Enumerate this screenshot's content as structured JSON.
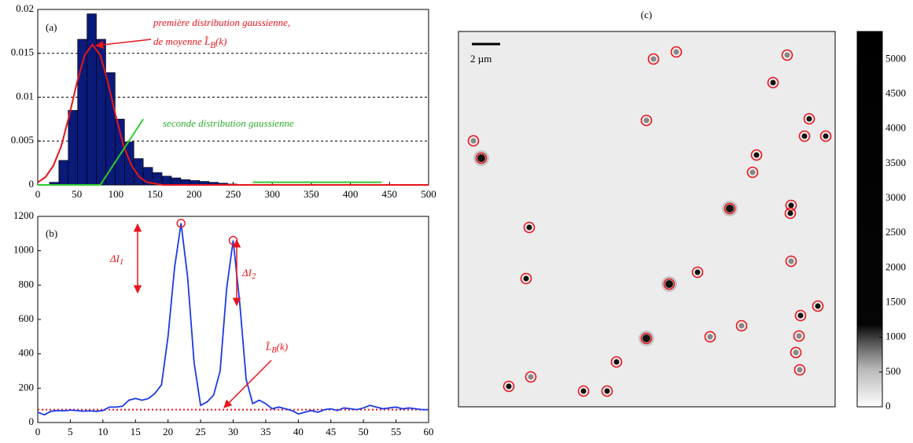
{
  "chart_data": [
    {
      "type": "histogram",
      "label": "(a)",
      "bins": [
        15,
        27,
        39,
        51,
        63,
        75,
        87,
        99,
        111,
        123,
        135,
        147,
        159,
        171,
        183,
        195,
        207,
        219,
        231,
        243,
        255
      ],
      "values": [
        0.0003,
        0.0028,
        0.0085,
        0.0166,
        0.0195,
        0.0166,
        0.0128,
        0.0075,
        0.0049,
        0.003,
        0.002,
        0.0014,
        0.001,
        0.0008,
        0.0006,
        0.0005,
        0.0004,
        0.0003,
        0.0002,
        0.0001
      ],
      "color": "#0a1a78",
      "lines": [
        {
          "color": "#e8141c",
          "x": [
            0,
            10,
            20,
            30,
            40,
            50,
            60,
            70,
            80,
            90,
            100,
            110,
            120,
            130,
            140,
            160,
            500
          ],
          "values": [
            0.0003,
            0.0009,
            0.0022,
            0.0044,
            0.0078,
            0.0116,
            0.0148,
            0.016,
            0.0148,
            0.0116,
            0.0078,
            0.0044,
            0.0022,
            0.0009,
            0.0003,
            0,
            0
          ]
        },
        {
          "color": "#2ecc2e",
          "x": [
            0,
            80,
            135,
            200,
            275,
            440
          ],
          "values": [
            0,
            0,
            0.0075,
            null,
            0.0003,
            0.0003
          ]
        }
      ],
      "annotations": [
        {
          "text": "première distribution gaussienne,",
          "color": "#e8141c"
        },
        {
          "text": "de moyenne L̂",
          "sub": "B",
          "after": "(k)",
          "color": "#e8141c"
        },
        {
          "text": "seconde distribution gaussienne",
          "color": "#2eaa2e"
        }
      ],
      "xlim": [
        0,
        500
      ],
      "xticks": [
        0,
        50,
        100,
        150,
        200,
        250,
        300,
        350,
        400,
        450,
        500
      ],
      "ylim": [
        0,
        0.02
      ],
      "yticks": [
        0,
        0.005,
        0.01,
        0.015,
        0.02
      ],
      "grid": true
    },
    {
      "type": "line",
      "label": "(b)",
      "x": [
        0,
        1,
        2,
        3,
        4,
        5,
        6,
        7,
        8,
        9,
        10,
        11,
        12,
        13,
        14,
        15,
        16,
        17,
        18,
        19,
        20,
        21,
        22,
        23,
        24,
        25,
        26,
        27,
        28,
        29,
        30,
        31,
        32,
        33,
        34,
        35,
        36,
        37,
        38,
        39,
        40,
        41,
        42,
        43,
        44,
        45,
        46,
        47,
        48,
        49,
        50,
        51,
        52,
        53,
        54,
        55,
        56,
        57,
        58,
        59,
        60
      ],
      "series": [
        {
          "color": "#1a3ae8",
          "values": [
            60,
            45,
            65,
            70,
            68,
            72,
            70,
            66,
            68,
            65,
            70,
            90,
            90,
            95,
            130,
            140,
            130,
            140,
            170,
            220,
            500,
            900,
            1160,
            850,
            350,
            100,
            120,
            160,
            300,
            780,
            1060,
            700,
            250,
            110,
            130,
            110,
            80,
            90,
            80,
            70,
            50,
            60,
            70,
            60,
            75,
            80,
            70,
            85,
            80,
            75,
            85,
            100,
            90,
            80,
            85,
            90,
            80,
            85,
            80,
            75,
            75
          ]
        }
      ],
      "lines": [
        {
          "color": "#e8141c",
          "x": [
            0,
            60
          ],
          "values": [
            75,
            75
          ]
        }
      ],
      "markers": {
        "color": "#e8141c",
        "x": [
          22,
          30
        ],
        "values": [
          1160,
          1060
        ]
      },
      "annotations": [
        {
          "text": "ΔI",
          "sub": "1",
          "color": "#e8141c"
        },
        {
          "text": "ΔI",
          "sub": "2",
          "color": "#e8141c"
        },
        {
          "text": "L̂",
          "sub": "B",
          "after": "(k)",
          "color": "#e8141c"
        }
      ],
      "xlim": [
        0,
        60
      ],
      "xticks": [
        0,
        5,
        10,
        15,
        20,
        25,
        30,
        35,
        40,
        45,
        50,
        55,
        60
      ],
      "ylim": [
        0,
        1200
      ],
      "yticks": [
        0,
        200,
        400,
        600,
        800,
        1000,
        1200
      ]
    },
    {
      "type": "image",
      "label": "(c)",
      "scalebar": "2 µm",
      "clim": [
        0,
        5400
      ],
      "cticks": [
        0,
        500,
        1000,
        1500,
        2000,
        2500,
        3000,
        3500,
        4000,
        4500,
        5000
      ]
    }
  ]
}
